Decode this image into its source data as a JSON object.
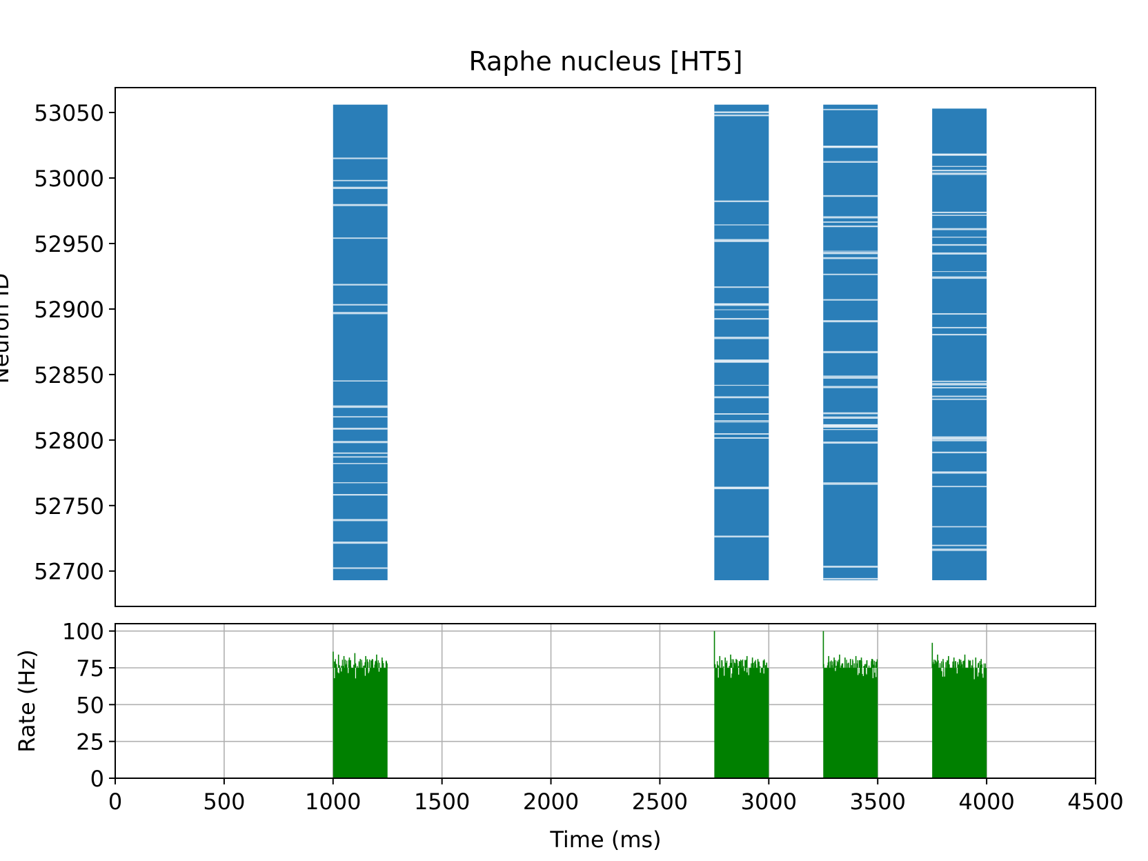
{
  "chart_data": [
    {
      "type": "scatter",
      "title": "Raphe nucleus [HT5]",
      "ylabel": "Neuron ID",
      "xlim": [
        0,
        4500
      ],
      "ylim": [
        52673,
        53069
      ],
      "yticks": [
        52700,
        52750,
        52800,
        52850,
        52900,
        52950,
        53000,
        53050
      ],
      "ytick_labels": [
        "52700",
        "52750",
        "52800",
        "52850",
        "52900",
        "52950",
        "53000",
        "53050"
      ],
      "color": "#1f77b4",
      "neuron_id_range": [
        52693,
        53056
      ],
      "spike_blocks": [
        {
          "x_start": 1000,
          "x_end": 1250,
          "id_min": 52693,
          "id_max": 53056
        },
        {
          "x_start": 2750,
          "x_end": 3000,
          "id_min": 52693,
          "id_max": 53056
        },
        {
          "x_start": 3250,
          "x_end": 3500,
          "id_min": 52693,
          "id_max": 53056
        },
        {
          "x_start": 3750,
          "x_end": 4000,
          "id_min": 52693,
          "id_max": 53053
        }
      ]
    },
    {
      "type": "bar",
      "xlabel": "Time (ms)",
      "ylabel": "Rate (Hz)",
      "xlim": [
        0,
        4500
      ],
      "ylim": [
        0,
        105
      ],
      "xticks": [
        0,
        500,
        1000,
        1500,
        2000,
        2500,
        3000,
        3500,
        4000,
        4500
      ],
      "xtick_labels": [
        "0",
        "500",
        "1000",
        "1500",
        "2000",
        "2500",
        "3000",
        "3500",
        "4000",
        "4500"
      ],
      "yticks": [
        0,
        25,
        50,
        75,
        100
      ],
      "ytick_labels": [
        "0",
        "25",
        "50",
        "75",
        "100"
      ],
      "grid": true,
      "color": "#008000",
      "bin_width_ms": 1,
      "rate_blocks": [
        {
          "x_start": 1000,
          "x_end": 1250,
          "base_rate": 75,
          "peak_rate": 86,
          "spike_rates": [
            86,
            84,
            83,
            82,
            85,
            81,
            83,
            80,
            84,
            82
          ]
        },
        {
          "x_start": 2750,
          "x_end": 3000,
          "base_rate": 75,
          "peak_rate": 100,
          "spike_rates": [
            100,
            83,
            82,
            84,
            81,
            80,
            83,
            82,
            81,
            80
          ]
        },
        {
          "x_start": 3250,
          "x_end": 3500,
          "base_rate": 75,
          "peak_rate": 100,
          "spike_rates": [
            100,
            83,
            82,
            84,
            82,
            81,
            83,
            82,
            80,
            81
          ]
        },
        {
          "x_start": 3750,
          "x_end": 4000,
          "base_rate": 75,
          "peak_rate": 92,
          "spike_rates": [
            92,
            84,
            81,
            83,
            82,
            81,
            84,
            80,
            82,
            81
          ]
        }
      ]
    }
  ]
}
